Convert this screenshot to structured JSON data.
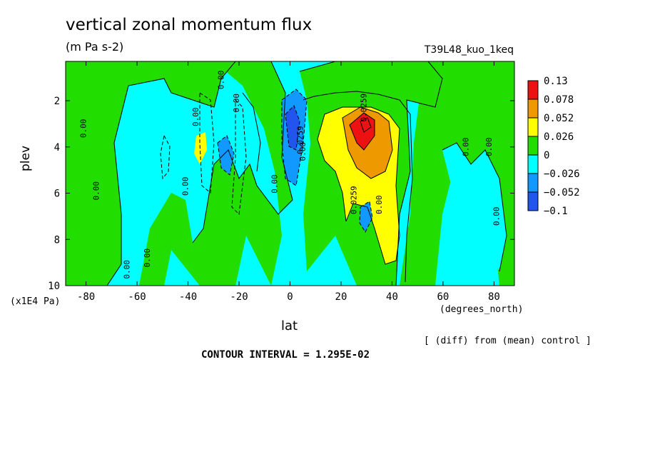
{
  "header": {
    "title": "vertical zonal momentum flux",
    "units": "(m Pa s-2)",
    "run_name": "T39L48_kuo_1keq"
  },
  "footer": {
    "y_unit": "(x1E4 Pa)",
    "x_unit": "(degrees_north)",
    "diff_note": "[ (diff) from (mean) control ]",
    "contour_interval": "CONTOUR INTERVAL = 1.295E-02"
  },
  "chart_data": {
    "type": "heatmap",
    "title": "vertical zonal momentum flux",
    "subtitle": "(m Pa s-2)",
    "xlabel": "lat",
    "ylabel": "plev",
    "x_unit": "(degrees_north)",
    "y_unit": "(x1E4 Pa)",
    "xlim": [
      -88,
      88
    ],
    "ylim": [
      10,
      0.3
    ],
    "y_inverted": true,
    "x_ticks": [
      -80,
      -60,
      -40,
      -20,
      0,
      20,
      40,
      60,
      80
    ],
    "y_ticks": [
      2,
      4,
      6,
      8,
      10
    ],
    "colorbar": {
      "labels": [
        "0.13",
        "0.078",
        "0.052",
        "0.026",
        "0",
        "−0.026",
        "−0.052",
        "−0.1"
      ],
      "colors": [
        "#ee1111",
        "#ee9900",
        "#ffff00",
        "#22dd00",
        "#00ffff",
        "#1199ff",
        "#2255ee"
      ]
    },
    "contour_interval": 0.01295,
    "contour_labels": [
      {
        "text": "0.00",
        "lat": -80,
        "plev": 3.2
      },
      {
        "text": "0.00",
        "lat": -75,
        "plev": 5.9
      },
      {
        "text": "0.00",
        "lat": -63,
        "plev": 9.3
      },
      {
        "text": "0.00",
        "lat": -55,
        "plev": 8.8
      },
      {
        "text": "0.00",
        "lat": -40,
        "plev": 5.7
      },
      {
        "text": "0.00",
        "lat": -36,
        "plev": 2.7
      },
      {
        "text": "0.00",
        "lat": -20,
        "plev": 2.1
      },
      {
        "text": "0.00",
        "lat": -26,
        "plev": 1.1
      },
      {
        "text": "0.00",
        "lat": -5,
        "plev": 5.6
      },
      {
        "text": "0.00",
        "lat": 6,
        "plev": 4.2
      },
      {
        "text": "0.0259",
        "lat": 5,
        "plev": 3.7
      },
      {
        "text": "0.0259",
        "lat": 30,
        "plev": 2.3
      },
      {
        "text": "0.0259",
        "lat": 26,
        "plev": 6.3
      },
      {
        "text": "0.00",
        "lat": 36,
        "plev": 6.5
      },
      {
        "text": "0.00",
        "lat": 70,
        "plev": 4.0
      },
      {
        "text": "0.00",
        "lat": 79,
        "plev": 4.0
      },
      {
        "text": "0.00",
        "lat": 82,
        "plev": 7.0
      }
    ]
  }
}
